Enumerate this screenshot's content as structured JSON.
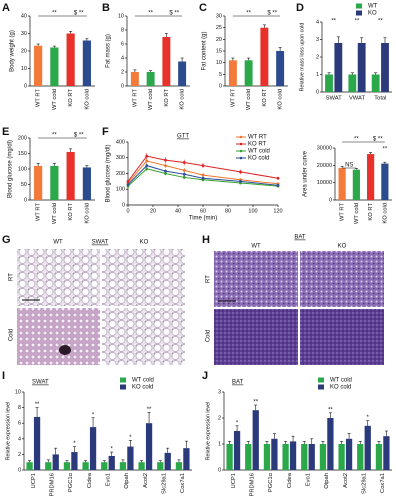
{
  "chart_data": [
    {
      "type": "bar",
      "panel": "A",
      "ylabel": "Body weight (g)",
      "categories": [
        "WT RT",
        "WT cold",
        "KO RT",
        "KO cold"
      ],
      "values": [
        23,
        22,
        30,
        26
      ],
      "errors": [
        1,
        0.8,
        1.2,
        1
      ],
      "colors": [
        "#f47a3a",
        "#2aa84a",
        "#e8312a",
        "#2b4b8e"
      ],
      "ylim": [
        0,
        40
      ],
      "yticks": [
        0,
        10,
        20,
        30,
        40
      ],
      "annotations": [
        "**",
        "$ **"
      ]
    },
    {
      "type": "bar",
      "panel": "B",
      "ylabel": "Fat mass (g)",
      "categories": [
        "WT RT",
        "WT cold",
        "KO RT",
        "KO cold"
      ],
      "values": [
        2,
        2,
        7,
        3.5
      ],
      "errors": [
        0.3,
        0.2,
        0.5,
        0.5
      ],
      "colors": [
        "#f47a3a",
        "#2aa84a",
        "#e8312a",
        "#2b4b8e"
      ],
      "ylim": [
        0,
        10
      ],
      "yticks": [
        0,
        2,
        4,
        6,
        8,
        10
      ],
      "annotations": [
        "**",
        "$ **"
      ]
    },
    {
      "type": "bar",
      "panel": "C",
      "ylabel": "Fat content (g)",
      "categories": [
        "WT RT",
        "WT cold",
        "KO RT",
        "KO cold"
      ],
      "values": [
        11,
        11,
        25,
        15
      ],
      "errors": [
        1,
        1,
        1.2,
        1.5
      ],
      "colors": [
        "#f47a3a",
        "#2aa84a",
        "#e8312a",
        "#2b4b8e"
      ],
      "ylim": [
        0,
        30
      ],
      "yticks": [
        0,
        5,
        10,
        15,
        20,
        25,
        30
      ],
      "annotations": [
        "**",
        "$ **"
      ]
    },
    {
      "type": "bar",
      "panel": "D",
      "ylabel": "Relative mass loss upon cold",
      "categories": [
        "SWAT",
        "VWAT",
        "Total"
      ],
      "series": [
        {
          "name": "WT",
          "color": "#2aa84a",
          "values": [
            1,
            1,
            1
          ],
          "errors": [
            0.1,
            0.1,
            0.1
          ]
        },
        {
          "name": "KO",
          "color": "#2b3a7a",
          "values": [
            2.8,
            2.8,
            2.8
          ],
          "errors": [
            0.35,
            0.3,
            0.3
          ]
        }
      ],
      "ylim": [
        0,
        4
      ],
      "yticks": [
        0,
        1,
        2,
        3,
        4
      ],
      "legend": "upper right",
      "annotations": [
        "**",
        "**",
        "**"
      ]
    },
    {
      "type": "bar",
      "panel": "E",
      "ylabel": "Blood glucose (mg/dl)",
      "categories": [
        "WT RT",
        "WT cold",
        "KO RT",
        "KO cold"
      ],
      "values": [
        110,
        110,
        155,
        105
      ],
      "errors": [
        8,
        8,
        10,
        6
      ],
      "colors": [
        "#f47a3a",
        "#2aa84a",
        "#e8312a",
        "#2b4b8e"
      ],
      "ylim": [
        0,
        200
      ],
      "yticks": [
        0,
        50,
        100,
        150,
        200
      ],
      "annotations": [
        "**",
        "$ **"
      ]
    },
    {
      "type": "line",
      "panel": "F",
      "title": "GTT",
      "xlabel": "Time (min)",
      "ylabel": "Blood glucose (mg/dl)",
      "x": [
        0,
        15,
        30,
        45,
        60,
        90,
        120
      ],
      "series": [
        {
          "name": "WT RT",
          "color": "#f0762e",
          "values": [
            140,
            280,
            250,
            220,
            190,
            160,
            135
          ],
          "errors": [
            10,
            18,
            15,
            15,
            12,
            10,
            8
          ]
        },
        {
          "name": "KO RT",
          "color": "#e02020",
          "values": [
            150,
            310,
            285,
            270,
            250,
            210,
            170
          ],
          "errors": [
            10,
            20,
            18,
            18,
            16,
            14,
            10
          ]
        },
        {
          "name": "WT cold",
          "color": "#33a02c",
          "values": [
            120,
            230,
            200,
            175,
            160,
            140,
            120
          ],
          "errors": [
            8,
            15,
            12,
            10,
            10,
            8,
            8
          ]
        },
        {
          "name": "KO cold",
          "color": "#2c4d9a",
          "values": [
            130,
            250,
            215,
            195,
            170,
            150,
            125
          ],
          "errors": [
            8,
            15,
            12,
            12,
            10,
            8,
            8
          ]
        }
      ],
      "xlim": [
        0,
        120
      ],
      "xticks": [
        0,
        20,
        40,
        60,
        80,
        100,
        120
      ],
      "ylim": [
        0,
        400
      ],
      "yticks": [
        0,
        100,
        200,
        300,
        400
      ],
      "legend": "upper right"
    },
    {
      "type": "bar",
      "ylabel": "Area under curve",
      "categories": [
        "WT RT",
        "WT cold",
        "KO RT",
        "KO cold"
      ],
      "values": [
        18500,
        17500,
        26500,
        21000
      ],
      "errors": [
        800,
        700,
        900,
        800
      ],
      "colors": [
        "#f47a3a",
        "#2aa84a",
        "#e8312a",
        "#2b4b8e"
      ],
      "ylim": [
        0,
        30000
      ],
      "yticks": [
        0,
        10000,
        20000,
        30000
      ],
      "annotations": [
        "NS",
        "**",
        "$ **",
        "**"
      ]
    },
    {
      "type": "bar",
      "panel": "I",
      "title": "SWAT",
      "ylabel": "Relative expression level",
      "categories": [
        "UCP1",
        "PRDM16",
        "PGC1α",
        "Cidea",
        "Evo1",
        "Otpah",
        "Acot2",
        "Slc29a1",
        "Cox7a1"
      ],
      "series": [
        {
          "name": "WT cold",
          "color": "#2aa84a",
          "values": [
            1,
            1,
            1,
            1,
            1,
            1,
            1,
            1,
            1
          ],
          "errors": [
            0.2,
            0.3,
            0.2,
            0.2,
            0.2,
            0.3,
            0.2,
            0.2,
            0.3
          ]
        },
        {
          "name": "KO cold",
          "color": "#2b3a7a",
          "values": [
            6.8,
            2,
            2.3,
            5.5,
            1.8,
            3,
            6,
            2.2,
            2.8
          ],
          "errors": [
            1.2,
            0.8,
            0.7,
            1.2,
            0.5,
            0.8,
            1.4,
            0.6,
            0.9
          ]
        }
      ],
      "ylim": [
        0,
        10
      ],
      "yticks": [
        0,
        2,
        4,
        6,
        8,
        10
      ],
      "legend": "upper right",
      "annotations": [
        "**",
        "*",
        "*",
        "*",
        "*",
        "**"
      ]
    },
    {
      "type": "bar",
      "panel": "J",
      "title": "BAT",
      "ylabel": "Relative expression level",
      "categories": [
        "UCP1",
        "PRDM16",
        "PGC1α",
        "Cidea",
        "Evo1",
        "Otpah",
        "Acot2",
        "Slc29a1",
        "Cox7a1"
      ],
      "series": [
        {
          "name": "WT cold",
          "color": "#2aa84a",
          "values": [
            1,
            1,
            1,
            1,
            1,
            1,
            1,
            1,
            1
          ],
          "errors": [
            0.1,
            0.1,
            0.1,
            0.1,
            0.1,
            0.1,
            0.1,
            0.1,
            0.1
          ]
        },
        {
          "name": "KO cold",
          "color": "#2b3a7a",
          "values": [
            1.5,
            2.3,
            1.2,
            1.1,
            1,
            2,
            1.2,
            1.7,
            1.3
          ],
          "errors": [
            0.2,
            0.2,
            0.2,
            0.2,
            0.2,
            0.2,
            0.2,
            0.2,
            0.2
          ]
        }
      ],
      "ylim": [
        0,
        3
      ],
      "yticks": [
        0,
        1,
        2,
        3
      ],
      "legend": "upper right",
      "annotations": [
        "*",
        "**",
        "**",
        "*"
      ]
    }
  ],
  "images": [
    {
      "panel": "G",
      "tissue": "SWAT",
      "columns": [
        "WT",
        "KO"
      ],
      "rows": [
        "RT",
        "Cold"
      ]
    },
    {
      "panel": "H",
      "tissue": "BAT",
      "columns": [
        "WT",
        "KO"
      ],
      "rows": [
        "RT",
        "Cold"
      ]
    }
  ]
}
